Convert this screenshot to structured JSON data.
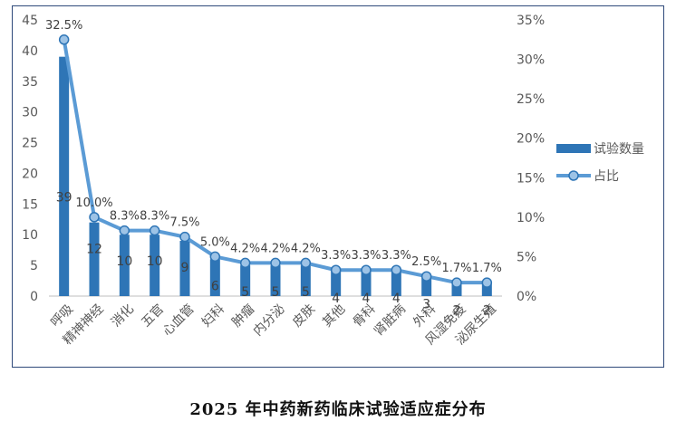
{
  "caption": "2025 年中药新药临床试验适应症分布",
  "chart_data": {
    "type": "bar",
    "categories": [
      "呼吸",
      "精神神经",
      "消化",
      "五官",
      "心血管",
      "妇科",
      "肿瘤",
      "内分泌",
      "皮肤",
      "其他",
      "骨科",
      "肾脏病",
      "外科",
      "风湿免疫",
      "泌尿生殖"
    ],
    "series": [
      {
        "name": "试验数量",
        "type": "bar",
        "axis": "left",
        "values": [
          39,
          12,
          10,
          10,
          9,
          6,
          5,
          5,
          5,
          4,
          4,
          4,
          3,
          2,
          2
        ],
        "labels": [
          "39",
          "12",
          "10",
          "10",
          "9",
          "6",
          "5",
          "5",
          "5",
          "4",
          "4",
          "4",
          "3",
          "2",
          "2"
        ]
      },
      {
        "name": "占比",
        "type": "line",
        "axis": "right",
        "values": [
          32.5,
          10.0,
          8.3,
          8.3,
          7.5,
          5.0,
          4.2,
          4.2,
          4.2,
          3.3,
          3.3,
          3.3,
          2.5,
          1.7,
          1.7
        ],
        "labels": [
          "32.5%",
          "10.0%",
          "8.3%",
          "8.3%",
          "7.5%",
          "5.0%",
          "4.2%",
          "4.2%",
          "4.2%",
          "3.3%",
          "3.3%",
          "3.3%",
          "2.5%",
          "1.7%",
          "1.7%"
        ]
      }
    ],
    "left_axis": {
      "ylim": [
        0,
        45
      ],
      "ticks": [
        "0",
        "5",
        "10",
        "15",
        "20",
        "25",
        "30",
        "35",
        "40",
        "45"
      ]
    },
    "right_axis": {
      "ylim": [
        0,
        35
      ],
      "ticks": [
        "0%",
        "5%",
        "10%",
        "15%",
        "20%",
        "25%",
        "30%",
        "35%"
      ]
    },
    "grid": false,
    "legend_position": "right",
    "colors": {
      "bar": "#2E75B6",
      "line": "#5B9BD5",
      "marker_fill": "#9DC3E6",
      "marker_edge": "#2E75B6",
      "frame": "#2F4A7A",
      "text": "#595959"
    }
  }
}
